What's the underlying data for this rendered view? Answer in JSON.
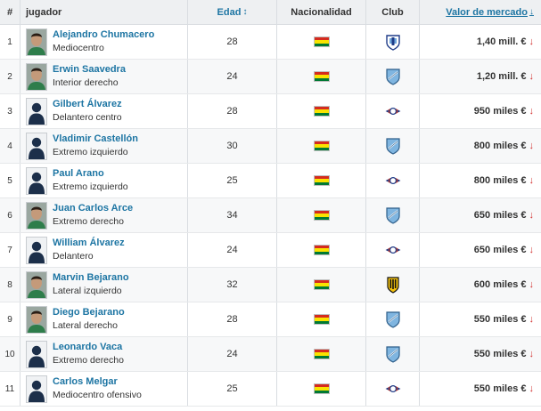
{
  "header": {
    "num": "#",
    "player": "jugador",
    "age": "Edad",
    "age_sort_icon": "sort-icon",
    "nationality": "Nacionalidad",
    "club": "Club",
    "value": "Valor de mercado",
    "value_sort_icon": "sort-down-icon"
  },
  "colors": {
    "link": "#1d75a3",
    "down_arrow": "#d3302f",
    "flag_red": "#d52b1e",
    "flag_yellow": "#f9e300",
    "flag_green": "#007934"
  },
  "rows": [
    {
      "num": "1",
      "name": "Alejandro Chumacero",
      "position": "Mediocentro",
      "age": "28",
      "value": "1,40 mill. €",
      "club_icon": "puebla-crest-icon",
      "photo": true
    },
    {
      "num": "2",
      "name": "Erwin Saavedra",
      "position": "Interior derecho",
      "age": "24",
      "value": "1,20 mill. €",
      "club_icon": "bolivar-crest-icon",
      "photo": true
    },
    {
      "num": "3",
      "name": "Gilbert Álvarez",
      "position": "Delantero centro",
      "age": "28",
      "value": "950 miles €",
      "club_icon": "wilstermann-crest-icon",
      "photo": false
    },
    {
      "num": "4",
      "name": "Vladimir Castellón",
      "position": "Extremo izquierdo",
      "age": "30",
      "value": "800 miles €",
      "club_icon": "bolivar-crest-icon",
      "photo": false
    },
    {
      "num": "5",
      "name": "Paul Arano",
      "position": "Extremo izquierdo",
      "age": "25",
      "value": "800 miles €",
      "club_icon": "wilstermann-crest-icon",
      "photo": false
    },
    {
      "num": "6",
      "name": "Juan Carlos Arce",
      "position": "Extremo derecho",
      "age": "34",
      "value": "650 miles €",
      "club_icon": "bolivar-crest-icon",
      "photo": true
    },
    {
      "num": "7",
      "name": "William Álvarez",
      "position": "Delantero",
      "age": "24",
      "value": "650 miles €",
      "club_icon": "wilstermann-crest-icon",
      "photo": false
    },
    {
      "num": "8",
      "name": "Marvin Bejarano",
      "position": "Lateral izquierdo",
      "age": "32",
      "value": "600 miles €",
      "club_icon": "the-strongest-crest-icon",
      "photo": true
    },
    {
      "num": "9",
      "name": "Diego Bejarano",
      "position": "Lateral derecho",
      "age": "28",
      "value": "550 miles €",
      "club_icon": "bolivar-crest-icon",
      "photo": true
    },
    {
      "num": "10",
      "name": "Leonardo Vaca",
      "position": "Extremo derecho",
      "age": "24",
      "value": "550 miles €",
      "club_icon": "bolivar-crest-icon",
      "photo": false
    },
    {
      "num": "11",
      "name": "Carlos Melgar",
      "position": "Mediocentro ofensivo",
      "age": "25",
      "value": "550 miles €",
      "club_icon": "wilstermann-crest-icon",
      "photo": false
    }
  ]
}
